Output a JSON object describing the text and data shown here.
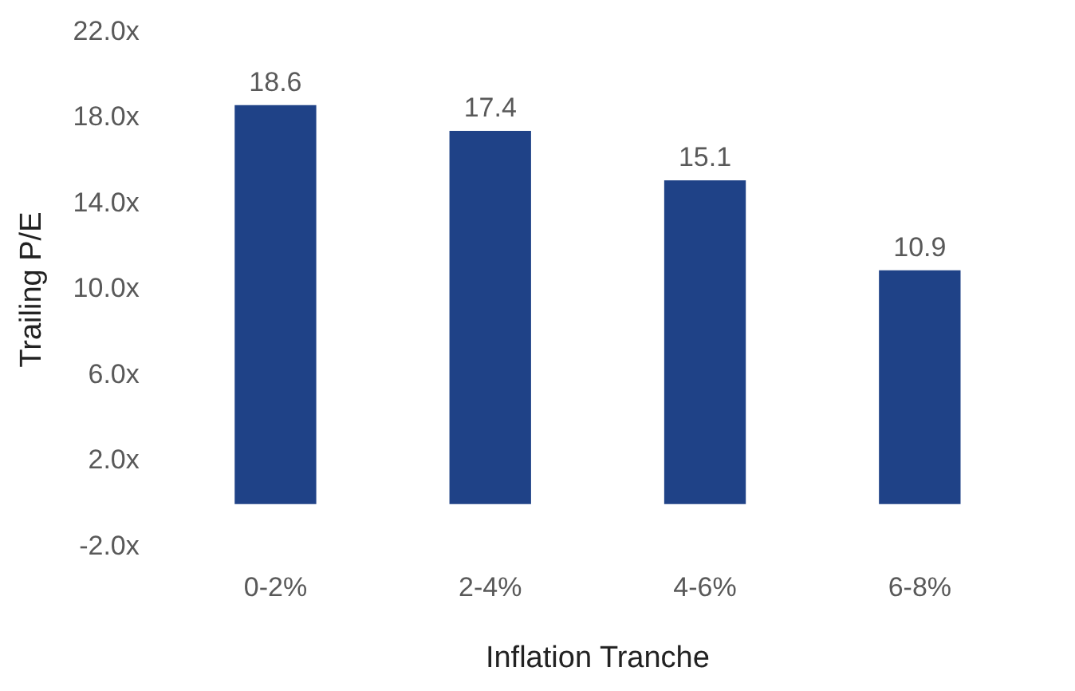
{
  "chart_data": {
    "type": "bar",
    "xlabel": "Inflation Tranche",
    "ylabel": "Trailing P/E",
    "categories": [
      "0-2%",
      "2-4%",
      "4-6%",
      "6-8%"
    ],
    "values": [
      18.6,
      17.4,
      15.1,
      10.9
    ],
    "color": "#1f4287",
    "ylim": [
      -2,
      22
    ],
    "yticks": [
      {
        "value": -2,
        "label": "-2.0x"
      },
      {
        "value": 2,
        "label": "2.0x"
      },
      {
        "value": 6,
        "label": "6.0x"
      },
      {
        "value": 10,
        "label": "10.0x"
      },
      {
        "value": 14,
        "label": "14.0x"
      },
      {
        "value": 18,
        "label": "18.0x"
      },
      {
        "value": 22,
        "label": "22.0x"
      }
    ],
    "data_labels": true,
    "grid": false,
    "legend": false
  }
}
